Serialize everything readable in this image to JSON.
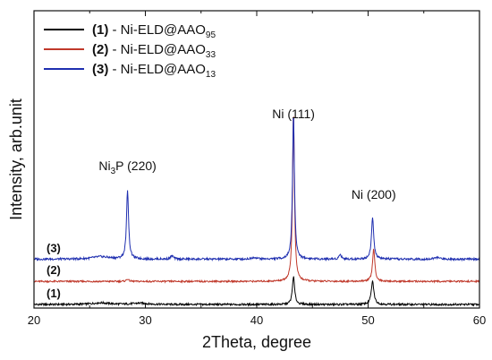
{
  "chart_data": {
    "type": "line",
    "xlabel": "2Theta, degree",
    "ylabel": "Intensity, arb.unit",
    "xlim": [
      20,
      60
    ],
    "y_ticks_shown": false,
    "grid": false,
    "legend_position": "top-left",
    "x_ticks": [
      "20",
      "30",
      "40",
      "50",
      "60"
    ],
    "series": [
      {
        "name": "Ni-ELD@AAO95",
        "legend": {
          "bold": "(1)",
          "text": " - Ni-ELD@AAO",
          "sub": "95"
        },
        "trace_label": "(1)",
        "color": "#000000",
        "baseline": 0,
        "noise": 1.2,
        "peaks": [
          {
            "x": 26.0,
            "h": 2,
            "w": 0.9
          },
          {
            "x": 29.5,
            "h": 1.5,
            "w": 0.8
          },
          {
            "x": 43.3,
            "h": 34,
            "w": 0.12
          },
          {
            "x": 50.4,
            "h": 28,
            "w": 0.14
          }
        ]
      },
      {
        "name": "Ni-ELD@AAO33",
        "legend": {
          "bold": "(2)",
          "text": " - Ni-ELD@AAO",
          "sub": "33"
        },
        "trace_label": "(2)",
        "color": "#c0392b",
        "baseline": 28,
        "noise": 1.0,
        "peaks": [
          {
            "x": 28.4,
            "h": 3,
            "w": 0.12
          },
          {
            "x": 43.3,
            "h": 206,
            "w": 0.1
          },
          {
            "x": 50.5,
            "h": 40,
            "w": 0.12
          }
        ]
      },
      {
        "name": "Ni-ELD@AAO13",
        "legend": {
          "bold": "(3)",
          "text": " - Ni-ELD@AAO",
          "sub": "13"
        },
        "trace_label": "(3)",
        "color": "#1f2fb0",
        "baseline": 55,
        "noise": 1.3,
        "peaks": [
          {
            "x": 26.0,
            "h": 3,
            "w": 0.9
          },
          {
            "x": 28.4,
            "h": 84,
            "w": 0.11
          },
          {
            "x": 32.4,
            "h": 4,
            "w": 0.15
          },
          {
            "x": 39.8,
            "h": 2,
            "w": 0.3
          },
          {
            "x": 43.3,
            "h": 178,
            "w": 0.1
          },
          {
            "x": 47.5,
            "h": 6,
            "w": 0.12
          },
          {
            "x": 50.4,
            "h": 50,
            "w": 0.12
          },
          {
            "x": 56.2,
            "h": 2,
            "w": 0.3
          }
        ]
      }
    ],
    "annotations": [
      {
        "id": "ni3p",
        "main": "Ni",
        "sub": "3",
        "rest": "P (220)",
        "x": 28.4
      },
      {
        "id": "ni111",
        "main": "Ni (111)",
        "sub": "",
        "rest": "",
        "x": 43.3
      },
      {
        "id": "ni200",
        "main": "Ni (200)",
        "sub": "",
        "rest": "",
        "x": 50.5
      }
    ]
  }
}
